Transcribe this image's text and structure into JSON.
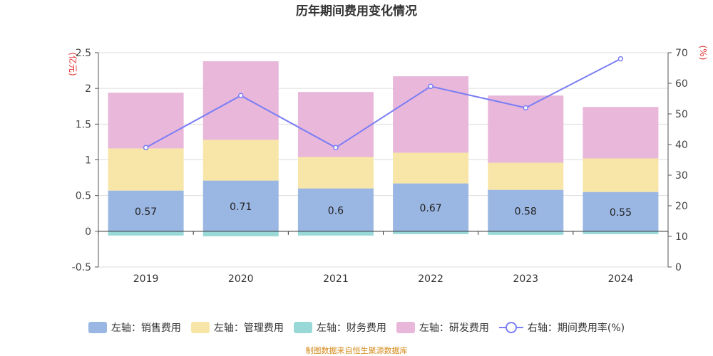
{
  "chart_data": {
    "type": "bar",
    "stacked": true,
    "title": "历年期间费用变化情况",
    "categories": [
      "2019",
      "2020",
      "2021",
      "2022",
      "2023",
      "2024"
    ],
    "left_axis": {
      "unit": "(亿元)",
      "ylim": [
        -0.5,
        2.5
      ],
      "ticks": [
        "-0.5",
        "0",
        "0.5",
        "1",
        "1.5",
        "2",
        "2.5"
      ],
      "tick_values": [
        -0.5,
        0,
        0.5,
        1,
        1.5,
        2,
        2.5
      ]
    },
    "right_axis": {
      "unit": "(%)",
      "ylim": [
        0,
        70
      ],
      "ticks": [
        "0",
        "10",
        "20",
        "30",
        "40",
        "50",
        "60",
        "70"
      ],
      "tick_values": [
        0,
        10,
        20,
        30,
        40,
        50,
        60,
        70
      ]
    },
    "series": [
      {
        "name": "左轴：销售费用",
        "axis": "left",
        "color": "#9ab6e2",
        "values": [
          0.57,
          0.71,
          0.6,
          0.67,
          0.58,
          0.55
        ],
        "labels": [
          "0.57",
          "0.71",
          "0.6",
          "0.67",
          "0.58",
          "0.55"
        ]
      },
      {
        "name": "左轴：管理费用",
        "axis": "left",
        "color": "#f7e6a8",
        "values": [
          0.59,
          0.57,
          0.44,
          0.43,
          0.38,
          0.47
        ]
      },
      {
        "name": "左轴：财务费用",
        "axis": "left",
        "color": "#98d8d6",
        "values": [
          -0.06,
          -0.07,
          -0.06,
          -0.04,
          -0.05,
          -0.04
        ]
      },
      {
        "name": "左轴：研发费用",
        "axis": "left",
        "color": "#e8b7da",
        "values": [
          0.78,
          1.1,
          0.91,
          1.07,
          0.94,
          0.72
        ]
      },
      {
        "name": "右轴：期间费用率(%)",
        "axis": "right",
        "type": "line",
        "color": "#7b7ef5",
        "values": [
          39,
          56,
          39,
          59,
          52,
          68
        ]
      }
    ]
  },
  "source": "制图数据来自恒生聚源数据库"
}
